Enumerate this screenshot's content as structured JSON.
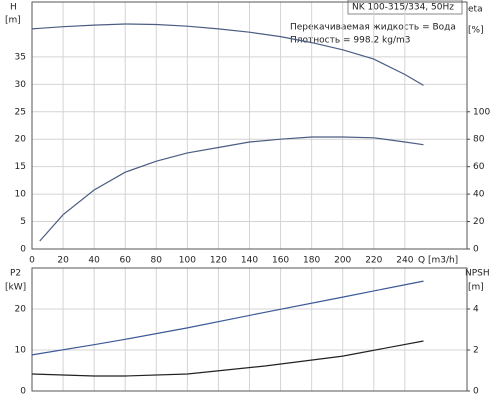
{
  "chart_data": [
    {
      "type": "line",
      "title": "NK 100-315/334, 50Hz",
      "annotations": [
        "Перекачиваемая жидкость = Вода",
        "Плотность = 998.2 kg/m3"
      ],
      "ylabel": "H",
      "yunit": "[m]",
      "y2label": "eta",
      "y2unit": "[%]",
      "xlabel": "Q [m3/h]",
      "x": [
        0,
        5,
        20,
        40,
        60,
        80,
        100,
        120,
        140,
        160,
        180,
        200,
        220,
        240,
        252
      ],
      "xlim": [
        0,
        280
      ],
      "xticks": [
        0,
        20,
        40,
        60,
        80,
        100,
        120,
        140,
        160,
        180,
        200,
        220,
        240
      ],
      "ylim": [
        0,
        45
      ],
      "yticks": [
        0,
        5,
        10,
        15,
        20,
        25,
        30,
        35
      ],
      "y2lim": [
        0,
        180
      ],
      "y2ticks": [
        0,
        20,
        40,
        60,
        80,
        100
      ],
      "grid": true,
      "series": [
        {
          "color": "#4b5d82",
          "values": [
            40.1,
            40.2,
            40.5,
            40.8,
            41,
            40.9,
            40.6,
            40.1,
            39.5,
            38.7,
            37.6,
            36.3,
            34.6,
            31.8,
            29.8
          ]
        },
        {
          "color": "#4b5d82",
          "axis": "y2",
          "values": [
            null,
            5.8,
            25,
            43,
            56,
            64,
            70,
            74,
            78,
            80,
            81.6,
            81.6,
            81,
            78,
            76
          ]
        }
      ]
    },
    {
      "type": "line",
      "ylabel": "P2",
      "yunit": "[kW]",
      "y2label": "NPSH",
      "y2unit": "[m]",
      "x": [
        0,
        40,
        60,
        100,
        150,
        200,
        252
      ],
      "xlim": [
        0,
        280
      ],
      "ylim": [
        0,
        30
      ],
      "yticks": [
        0,
        10,
        20
      ],
      "y2lim": [
        0,
        6
      ],
      "y2ticks": [
        0,
        2,
        4
      ],
      "grid": true,
      "series": [
        {
          "color": "#3b5998",
          "values": [
            8.8,
            11.3,
            12.6,
            15.4,
            19.2,
            22.9,
            26.8
          ]
        },
        {
          "color": "#222222",
          "axis": "y2",
          "values": [
            0.83,
            0.73,
            0.73,
            0.83,
            1.22,
            1.7,
            2.44
          ]
        }
      ]
    }
  ]
}
